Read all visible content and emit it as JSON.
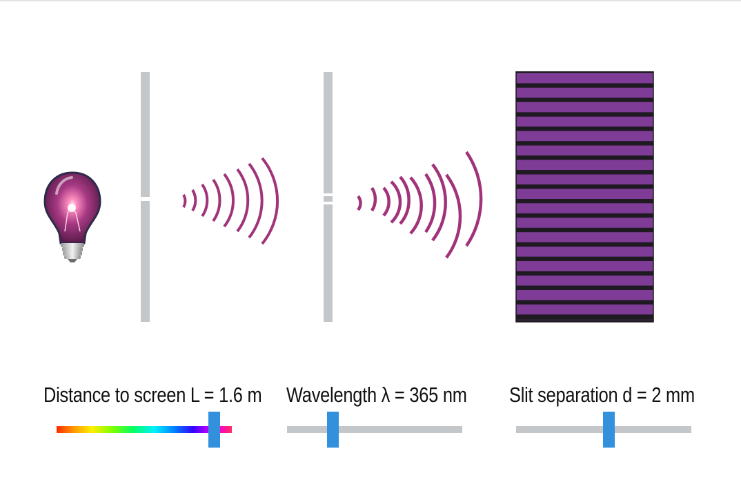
{
  "controls": {
    "distance": {
      "label": "Distance to screen L = 1.6 m",
      "value_fraction": 0.9,
      "track_style": "spectrum"
    },
    "wavelength": {
      "label": "Wavelength λ = 365 nm",
      "value_fraction": 0.26,
      "track_style": "plain"
    },
    "separation": {
      "label": "Slit separation d = 2 mm",
      "value_fraction": 0.53,
      "track_style": "plain"
    }
  },
  "colors": {
    "wave": "#a0337a",
    "barrier": "#c4c7ca",
    "fringe_bright": "#7e3c96",
    "fringe_dark": "#1f1a22",
    "thumb": "#3390dc",
    "bulb_glass": "#7a2a66"
  },
  "scene": {
    "icons": [
      "light-bulb-icon"
    ],
    "fringe_count": 17
  }
}
